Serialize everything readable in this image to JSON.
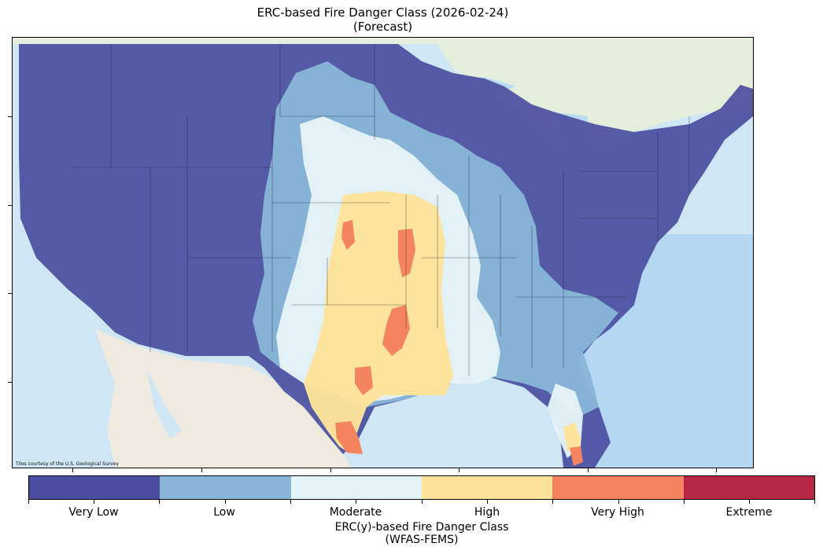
{
  "title": {
    "line1": "ERC-based Fire Danger Class (2026-02-24)",
    "line2": "(Forecast)"
  },
  "map": {
    "credit": "Tiles courtesy of the U.S. Geological Survey",
    "region": "Contiguous United States",
    "basemap_colors": {
      "ocean": "#cfe6f5",
      "land": "#f1efe6",
      "canada": "#e3eedb",
      "lakes": "#b9dcf2"
    },
    "danger_zones": [
      {
        "class": "Very Low",
        "area": "West, Northern Plains, Great Lakes, Northeast, Mid-Atlantic"
      },
      {
        "class": "Low",
        "area": "Western Plains, Upper Mississippi, Southeast"
      },
      {
        "class": "Moderate",
        "area": "Central Plains, Lower Mississippi, Florida peninsula"
      },
      {
        "class": "High",
        "area": "Kansas, Oklahoma, Texas, south Florida"
      },
      {
        "class": "Very High",
        "area": "Eastern Kansas, Oklahoma, Central and South Texas, south Florida tip"
      }
    ]
  },
  "colorbar": {
    "title_line1": "ERC(y)-based Fire Danger Class",
    "title_line2": "(WFAS-FEMS)",
    "classes": [
      {
        "label": "Very Low",
        "color": "#4b4ea0"
      },
      {
        "label": "Low",
        "color": "#87b6d6"
      },
      {
        "label": "Moderate",
        "color": "#e4f3f7"
      },
      {
        "label": "High",
        "color": "#fde29a"
      },
      {
        "label": "Very High",
        "color": "#f48360"
      },
      {
        "label": "Extreme",
        "color": "#b52645"
      }
    ]
  }
}
